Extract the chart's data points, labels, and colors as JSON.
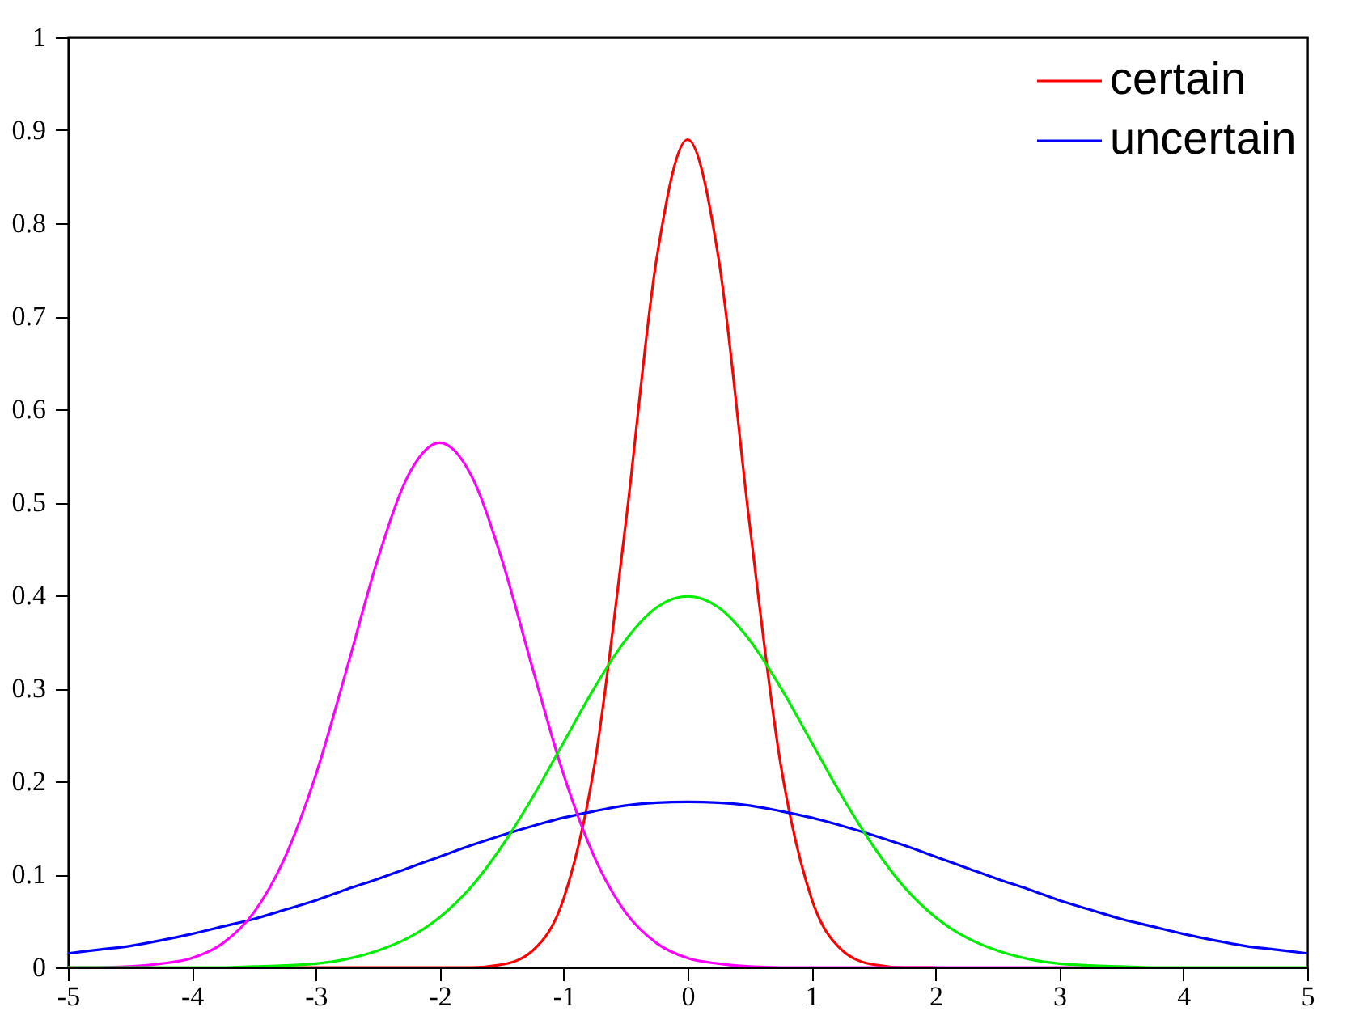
{
  "chart_data": {
    "type": "line",
    "x": [
      -5,
      -4.75,
      -4.5,
      -4.25,
      -4,
      -3.75,
      -3.5,
      -3.25,
      -3,
      -2.75,
      -2.5,
      -2.25,
      -2,
      -1.75,
      -1.5,
      -1.25,
      -1,
      -0.75,
      -0.5,
      -0.25,
      0,
      0.25,
      0.5,
      0.75,
      1,
      1.25,
      1.5,
      1.75,
      2,
      2.25,
      2.5,
      2.75,
      3,
      3.25,
      3.5,
      3.75,
      4,
      4.25,
      4.5,
      4.75,
      5
    ],
    "series": [
      {
        "name": "certain",
        "color": "#ff0000",
        "values": [
          null,
          null,
          null,
          null,
          null,
          null,
          0,
          0,
          0,
          0,
          0,
          0,
          0,
          0,
          0.003,
          0.018,
          0.074,
          0.219,
          0.477,
          0.762,
          0.89,
          0.762,
          0.477,
          0.219,
          0.074,
          0.018,
          0.003,
          0,
          0,
          null,
          null,
          null,
          null,
          null,
          null,
          null,
          null,
          null,
          null,
          null,
          null
        ]
      },
      {
        "name": "uncertain",
        "color": "#0000ff",
        "values": [
          0.015,
          0.019,
          0.023,
          0.029,
          0.036,
          0.044,
          0.052,
          0.062,
          0.072,
          0.084,
          0.095,
          0.107,
          0.119,
          0.131,
          0.142,
          0.152,
          0.161,
          0.168,
          0.174,
          0.177,
          0.178,
          0.177,
          0.174,
          0.168,
          0.161,
          0.152,
          0.142,
          0.131,
          0.119,
          0.107,
          0.095,
          0.084,
          0.072,
          0.062,
          0.052,
          0.044,
          0.036,
          0.029,
          0.023,
          0.019,
          0.015
        ]
      },
      {
        "color": "#ff00ff",
        "values": [
          0,
          0,
          0.001,
          0.004,
          0.01,
          0.026,
          0.059,
          0.118,
          0.207,
          0.321,
          0.439,
          0.53,
          0.564,
          0.53,
          0.439,
          0.321,
          0.207,
          0.118,
          0.059,
          0.026,
          0.01,
          0.004,
          0.001,
          0,
          0,
          0,
          0,
          0,
          0,
          0,
          0,
          0,
          0,
          0,
          0,
          null,
          null,
          null,
          null,
          null,
          null
        ]
      },
      {
        "color": "#00ee00",
        "values": [
          0,
          0,
          0,
          0,
          0,
          0,
          0.001,
          0.002,
          0.004,
          0.009,
          0.018,
          0.032,
          0.054,
          0.086,
          0.13,
          0.183,
          0.242,
          0.301,
          0.352,
          0.387,
          0.399,
          0.387,
          0.352,
          0.301,
          0.242,
          0.183,
          0.13,
          0.086,
          0.054,
          0.032,
          0.018,
          0.009,
          0.004,
          0.002,
          0.001,
          0,
          0,
          0,
          0,
          0,
          0
        ]
      }
    ],
    "xlim": [
      -5,
      5
    ],
    "xticks": [
      -5,
      -4,
      -3,
      -2,
      -1,
      0,
      1,
      2,
      3,
      4,
      5
    ],
    "ylim": [
      0,
      1
    ],
    "yticks": [
      0,
      0.1,
      0.2,
      0.3,
      0.4,
      0.5,
      0.6,
      0.7,
      0.8,
      0.9,
      1
    ],
    "legend": "top right",
    "line_style": "solid",
    "marker": "none"
  }
}
